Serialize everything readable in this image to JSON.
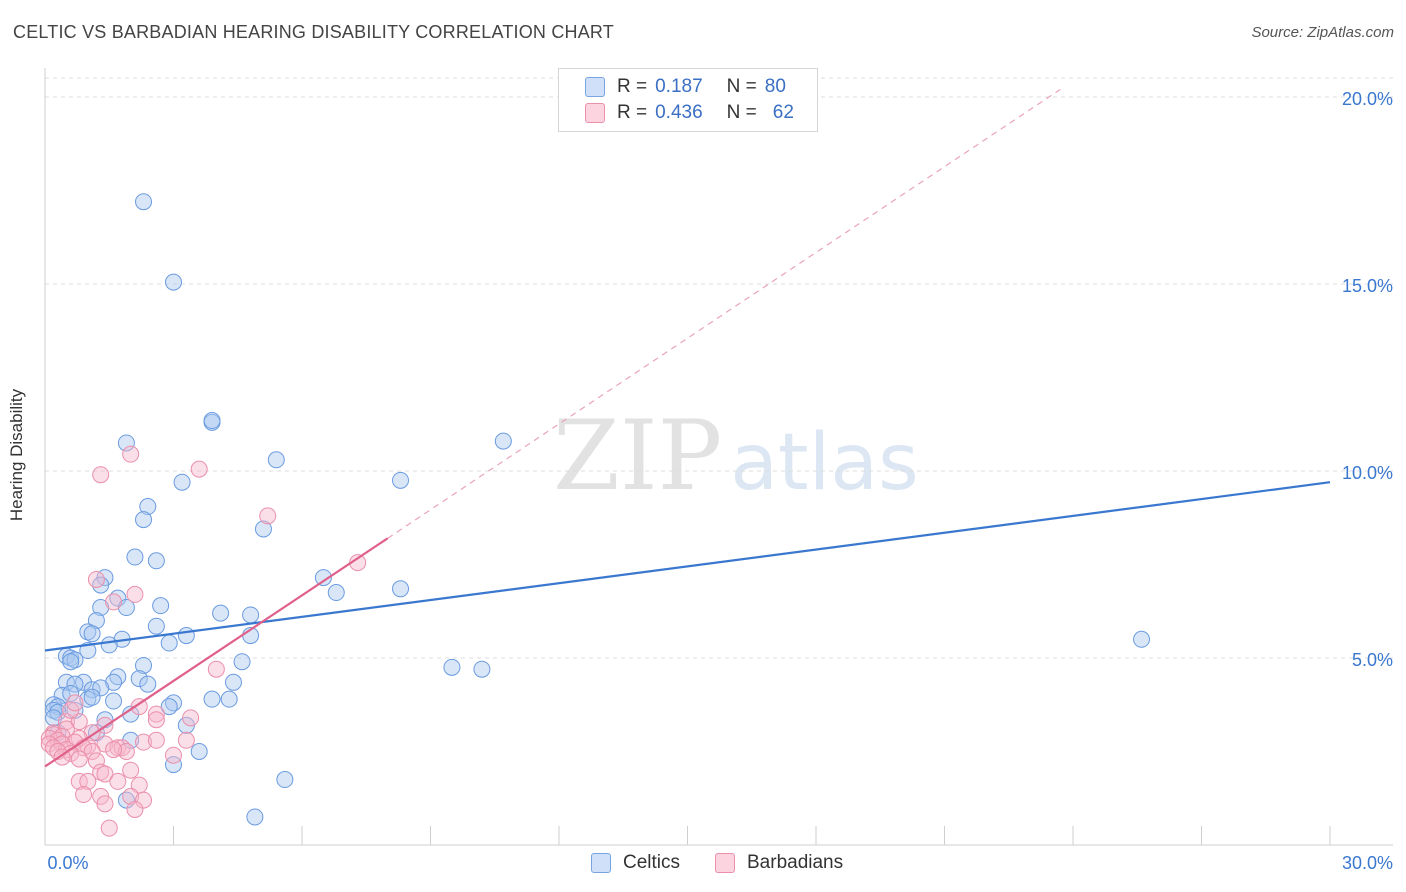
{
  "header": {
    "title": "CELTIC VS BARBADIAN HEARING DISABILITY CORRELATION CHART",
    "source": "Source: ZipAtlas.com"
  },
  "watermark": {
    "zip": "ZIP",
    "atlas": "atlas"
  },
  "legend": {
    "rows": [
      {
        "r_label": "R =",
        "r_value": "0.187",
        "n_label": "N =",
        "n_value": "80",
        "color": "#a9c8f0"
      },
      {
        "r_label": "R =",
        "r_value": "0.436",
        "n_label": "N =",
        "n_value": "62",
        "color": "#f7b9cc"
      }
    ],
    "bottom": [
      {
        "label": "Celtics",
        "color": "#a9c8f0"
      },
      {
        "label": "Barbadians",
        "color": "#f7b9cc"
      }
    ]
  },
  "chart_data": {
    "type": "scatter",
    "title": "CELTIC VS BARBADIAN HEARING DISABILITY CORRELATION CHART",
    "ylabel": "Hearing Disability",
    "xlabel": "",
    "xlim": [
      0,
      30
    ],
    "ylim": [
      0,
      20.5
    ],
    "x_tick_labels": [
      "0.0%",
      "30.0%"
    ],
    "y_ticks": [
      5,
      10,
      15,
      20
    ],
    "y_tick_labels": [
      "5.0%",
      "10.0%",
      "15.0%",
      "20.0%"
    ],
    "grid": "horizontal dashed",
    "legend_position": "top-center",
    "colors": {
      "celtics": "#3a78d0",
      "barbadians": "#e0608a"
    },
    "series": [
      {
        "name": "Celtics",
        "trendline": {
          "x": [
            0,
            30
          ],
          "y": [
            5.2,
            9.7
          ],
          "style": "solid"
        },
        "points": [
          [
            2.3,
            17.2
          ],
          [
            3.0,
            15.05
          ],
          [
            3.9,
            11.3
          ],
          [
            3.9,
            11.35
          ],
          [
            1.9,
            10.75
          ],
          [
            10.7,
            10.8
          ],
          [
            5.4,
            10.3
          ],
          [
            3.2,
            9.7
          ],
          [
            8.3,
            9.75
          ],
          [
            2.4,
            9.05
          ],
          [
            2.3,
            8.7
          ],
          [
            5.1,
            8.45
          ],
          [
            2.1,
            7.7
          ],
          [
            2.6,
            7.6
          ],
          [
            1.4,
            7.15
          ],
          [
            6.5,
            7.15
          ],
          [
            1.3,
            6.95
          ],
          [
            6.8,
            6.75
          ],
          [
            8.3,
            6.85
          ],
          [
            1.7,
            6.6
          ],
          [
            1.3,
            6.35
          ],
          [
            1.9,
            6.35
          ],
          [
            2.7,
            6.4
          ],
          [
            4.1,
            6.2
          ],
          [
            4.8,
            6.15
          ],
          [
            1.2,
            6.0
          ],
          [
            2.6,
            5.85
          ],
          [
            1.0,
            5.7
          ],
          [
            1.1,
            5.65
          ],
          [
            3.3,
            5.6
          ],
          [
            4.8,
            5.6
          ],
          [
            1.8,
            5.5
          ],
          [
            1.5,
            5.35
          ],
          [
            2.9,
            5.4
          ],
          [
            1.0,
            5.2
          ],
          [
            25.6,
            5.5
          ],
          [
            0.5,
            5.05
          ],
          [
            0.6,
            5.0
          ],
          [
            0.7,
            4.95
          ],
          [
            0.6,
            4.9
          ],
          [
            2.3,
            4.8
          ],
          [
            4.6,
            4.9
          ],
          [
            9.5,
            4.75
          ],
          [
            10.2,
            4.7
          ],
          [
            1.7,
            4.5
          ],
          [
            2.2,
            4.45
          ],
          [
            0.5,
            4.35
          ],
          [
            0.9,
            4.35
          ],
          [
            0.7,
            4.3
          ],
          [
            4.4,
            4.35
          ],
          [
            1.6,
            4.35
          ],
          [
            2.4,
            4.3
          ],
          [
            1.1,
            4.15
          ],
          [
            1.3,
            4.2
          ],
          [
            0.4,
            4.0
          ],
          [
            0.6,
            4.05
          ],
          [
            1.0,
            3.9
          ],
          [
            1.1,
            3.95
          ],
          [
            3.0,
            3.8
          ],
          [
            3.9,
            3.9
          ],
          [
            4.3,
            3.9
          ],
          [
            1.6,
            3.85
          ],
          [
            0.2,
            3.75
          ],
          [
            0.3,
            3.7
          ],
          [
            0.2,
            3.6
          ],
          [
            0.3,
            3.55
          ],
          [
            0.7,
            3.6
          ],
          [
            2.0,
            3.5
          ],
          [
            2.9,
            3.7
          ],
          [
            0.2,
            3.4
          ],
          [
            1.4,
            3.35
          ],
          [
            3.3,
            3.2
          ],
          [
            2.0,
            2.8
          ],
          [
            3.6,
            2.5
          ],
          [
            3.0,
            2.15
          ],
          [
            5.6,
            1.75
          ],
          [
            4.9,
            0.75
          ],
          [
            1.9,
            1.2
          ],
          [
            0.3,
            3.0
          ],
          [
            1.2,
            3.0
          ]
        ]
      },
      {
        "name": "Barbadians",
        "trendline": {
          "x": [
            0,
            8.0
          ],
          "y": [
            2.1,
            8.2
          ],
          "style": "solid",
          "extended": {
            "x": [
              8.0,
              23.7
            ],
            "y": [
              8.2,
              20.2
            ],
            "style": "dashed"
          }
        },
        "points": [
          [
            2.0,
            10.45
          ],
          [
            3.6,
            10.05
          ],
          [
            1.3,
            9.9
          ],
          [
            5.2,
            8.8
          ],
          [
            7.3,
            7.55
          ],
          [
            1.2,
            7.1
          ],
          [
            2.1,
            6.7
          ],
          [
            1.6,
            6.5
          ],
          [
            4.0,
            4.7
          ],
          [
            2.6,
            3.5
          ],
          [
            3.4,
            3.4
          ],
          [
            0.5,
            3.3
          ],
          [
            0.8,
            3.3
          ],
          [
            1.4,
            3.2
          ],
          [
            0.5,
            3.1
          ],
          [
            0.2,
            3.0
          ],
          [
            1.1,
            3.0
          ],
          [
            2.6,
            3.35
          ],
          [
            0.2,
            2.95
          ],
          [
            0.4,
            2.9
          ],
          [
            0.8,
            2.85
          ],
          [
            0.1,
            2.85
          ],
          [
            0.3,
            2.8
          ],
          [
            0.7,
            2.75
          ],
          [
            2.3,
            2.75
          ],
          [
            2.6,
            2.8
          ],
          [
            3.3,
            2.8
          ],
          [
            0.1,
            2.7
          ],
          [
            0.4,
            2.7
          ],
          [
            1.0,
            2.65
          ],
          [
            1.4,
            2.7
          ],
          [
            0.2,
            2.6
          ],
          [
            0.5,
            2.55
          ],
          [
            0.9,
            2.6
          ],
          [
            1.7,
            2.6
          ],
          [
            1.8,
            2.6
          ],
          [
            0.3,
            2.5
          ],
          [
            0.6,
            2.45
          ],
          [
            1.1,
            2.5
          ],
          [
            1.9,
            2.5
          ],
          [
            1.6,
            2.55
          ],
          [
            3.0,
            2.4
          ],
          [
            0.4,
            2.35
          ],
          [
            0.8,
            2.3
          ],
          [
            1.2,
            2.25
          ],
          [
            2.0,
            2.0
          ],
          [
            1.3,
            1.95
          ],
          [
            1.4,
            1.9
          ],
          [
            0.8,
            1.7
          ],
          [
            1.0,
            1.7
          ],
          [
            1.7,
            1.7
          ],
          [
            2.2,
            1.6
          ],
          [
            0.9,
            1.35
          ],
          [
            1.3,
            1.3
          ],
          [
            2.0,
            1.3
          ],
          [
            2.3,
            1.2
          ],
          [
            1.4,
            1.1
          ],
          [
            2.1,
            0.95
          ],
          [
            1.5,
            0.45
          ],
          [
            0.6,
            3.6
          ],
          [
            0.7,
            3.8
          ],
          [
            2.2,
            3.7
          ]
        ]
      }
    ]
  }
}
